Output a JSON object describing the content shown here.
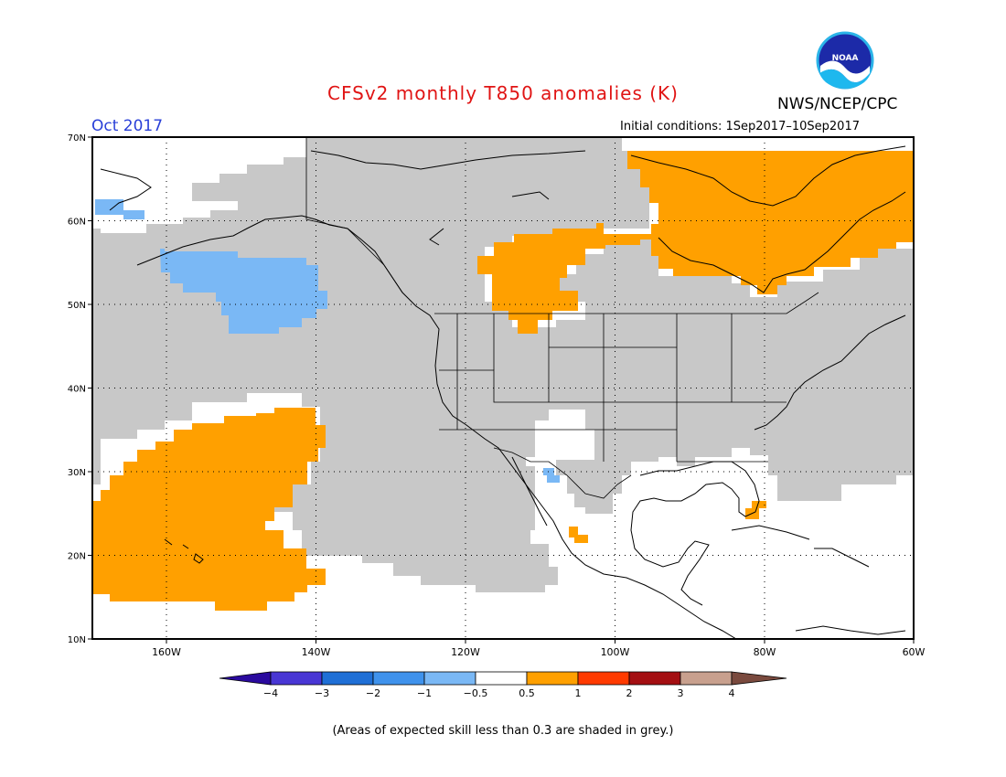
{
  "header": {
    "title": "CFSv2 monthly T850 anomalies (K)",
    "month": "Oct 2017",
    "agency": "NWS/NCEP/CPC",
    "initial_conditions": "Initial conditions: 1Sep2017–10Sep2017",
    "logo_text": "NOAA"
  },
  "map": {
    "lat_labels": [
      "70N",
      "60N",
      "50N",
      "40N",
      "30N",
      "20N",
      "10N"
    ],
    "lon_labels": [
      "160W",
      "140W",
      "120W",
      "100W",
      "80W",
      "60W"
    ]
  },
  "colorbar": {
    "labels": [
      "−4",
      "−3",
      "−2",
      "−1",
      "−0.5",
      "0.5",
      "1",
      "2",
      "3",
      "4"
    ],
    "colors": [
      "#2a0a9e",
      "#4836d4",
      "#1f6fd6",
      "#3f92ec",
      "#7ab8f5",
      "#ffffff",
      "#ffa000",
      "#ff3a00",
      "#a40f12",
      "#c8a08e",
      "#7a4a3e"
    ]
  },
  "footnote": "(Areas of expected skill less than 0.3 are shaded in grey.)",
  "colors": {
    "grey": "#c8c8c8",
    "positive": "#ffa000",
    "negative": "#7ab8f5",
    "title": "#e01414",
    "month": "#2a40d8"
  }
}
